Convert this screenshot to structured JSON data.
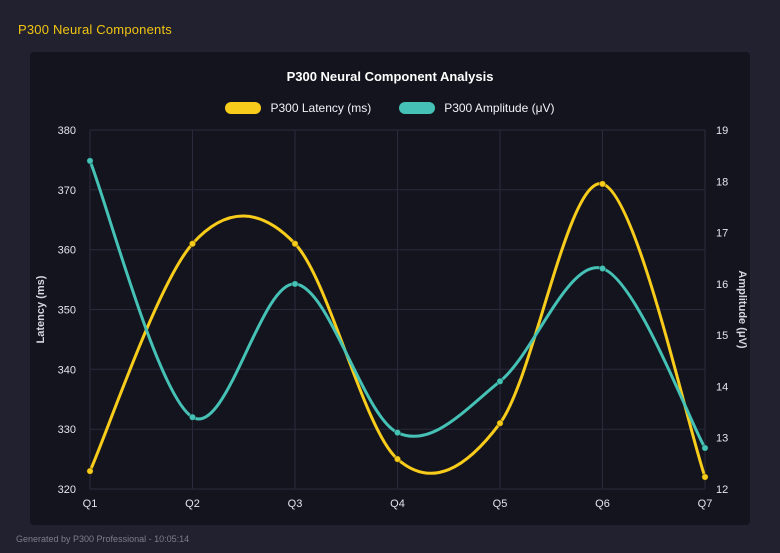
{
  "page": {
    "title": "P300 Neural Components",
    "footer": "Generated by P300 Professional - 10:05:14"
  },
  "chart": {
    "title": "P300 Neural Component Analysis"
  },
  "chart_data": {
    "type": "line",
    "smooth": true,
    "categories": [
      "Q1",
      "Q2",
      "Q3",
      "Q4",
      "Q5",
      "Q6",
      "Q7"
    ],
    "series": [
      {
        "name": "P300 Latency (ms)",
        "axis": "left",
        "color": "#f8cc1b",
        "values": [
          323,
          361,
          361,
          325,
          331,
          371,
          322
        ]
      },
      {
        "name": "P300 Amplitude (μV)",
        "axis": "right",
        "color": "#45c2b5",
        "values": [
          18.4,
          13.4,
          16.0,
          13.1,
          14.1,
          16.3,
          12.8
        ]
      }
    ],
    "left_axis": {
      "label": "Latency (ms)",
      "min": 320,
      "max": 380,
      "ticks": [
        320,
        330,
        340,
        350,
        360,
        370,
        380
      ]
    },
    "right_axis": {
      "label": "Amplitude (μV)",
      "min": 12,
      "max": 19,
      "ticks": [
        12,
        13,
        14,
        15,
        16,
        17,
        18,
        19
      ]
    },
    "grid": true,
    "legend_position": "top",
    "colors": {
      "background": "#212130",
      "panel": "#14141f",
      "grid": "#2a2a3c",
      "tick_text": "#e4e4ec",
      "axis_title_text": "#d6d6e0",
      "title_text": "#ffffff",
      "app_title_text": "#f2c512"
    }
  }
}
